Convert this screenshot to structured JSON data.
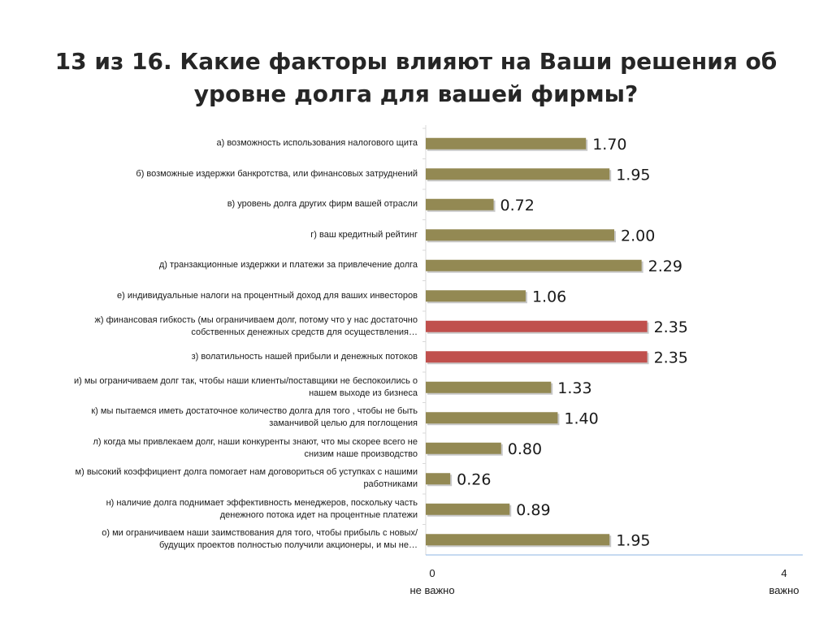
{
  "title": "13 из 16. Какие факторы влияют на Ваши решения об уровне долга для вашей фирмы?",
  "chart_data": {
    "type": "bar",
    "orientation": "horizontal",
    "title": "13 из 16. Какие факторы влияют на Ваши решения об уровне долга для вашей фирмы?",
    "xlim": [
      0,
      4
    ],
    "x_tick_labels": [
      "0",
      "4"
    ],
    "x_axis_left_label": "не важно",
    "x_axis_right_label": "важно",
    "grid": false,
    "colors": {
      "default": "#938953",
      "highlight": "#C0504D"
    },
    "bars": [
      {
        "label": "а) возможность использования налогового щита",
        "value": 1.7,
        "display": "1.70",
        "highlight": false
      },
      {
        "label": "б) возможные издержки банкротства, или финансовых затруднений",
        "value": 1.95,
        "display": "1.95",
        "highlight": false
      },
      {
        "label": "в) уровень долга других фирм вашей отрасли",
        "value": 0.72,
        "display": "0.72",
        "highlight": false
      },
      {
        "label": "г) ваш кредитный рейтинг",
        "value": 2.0,
        "display": "2.00",
        "highlight": false
      },
      {
        "label": "д) транзакционные издержки и платежи за привлечение долга",
        "value": 2.29,
        "display": "2.29",
        "highlight": false
      },
      {
        "label": "е) индивидуальные налоги на процентный доход для ваших инвесторов",
        "value": 1.06,
        "display": "1.06",
        "highlight": false
      },
      {
        "label": "ж) финансовая гибкость (мы ограничиваем долг, потому что у нас достаточно собственных денежных средств для осуществления…",
        "value": 2.35,
        "display": "2.35",
        "highlight": true
      },
      {
        "label": "з) волатильность нашей прибыли и денежных потоков",
        "value": 2.35,
        "display": "2.35",
        "highlight": true
      },
      {
        "label": "и) мы ограничиваем долг так, чтобы наши клиенты/поставщики не беспокоились о нашем выходе из бизнеса",
        "value": 1.33,
        "display": "1.33",
        "highlight": false
      },
      {
        "label": "к) мы пытаемся иметь достаточное количество долга для того , чтобы не быть заманчивой целью для поглощения",
        "value": 1.4,
        "display": "1.40",
        "highlight": false
      },
      {
        "label": "л) когда мы привлекаем долг, наши конкуренты знают, что мы скорее всего не снизим наше производство",
        "value": 0.8,
        "display": "0.80",
        "highlight": false
      },
      {
        "label": "м) высокий коэффициент долга помогает нам договориться об уступках с нашими работниками",
        "value": 0.26,
        "display": "0.26",
        "highlight": false
      },
      {
        "label": "н) наличие долга поднимает эффективность менеджеров, поскольку часть денежного потока идет на процентные платежи",
        "value": 0.89,
        "display": "0.89",
        "highlight": false
      },
      {
        "label": "о) ми ограничиваем наши заимствования для того, чтобы прибыль с новых/будущих проектов полностью получили акционеры,  и мы не…",
        "value": 1.95,
        "display": "1.95",
        "highlight": false
      }
    ]
  }
}
